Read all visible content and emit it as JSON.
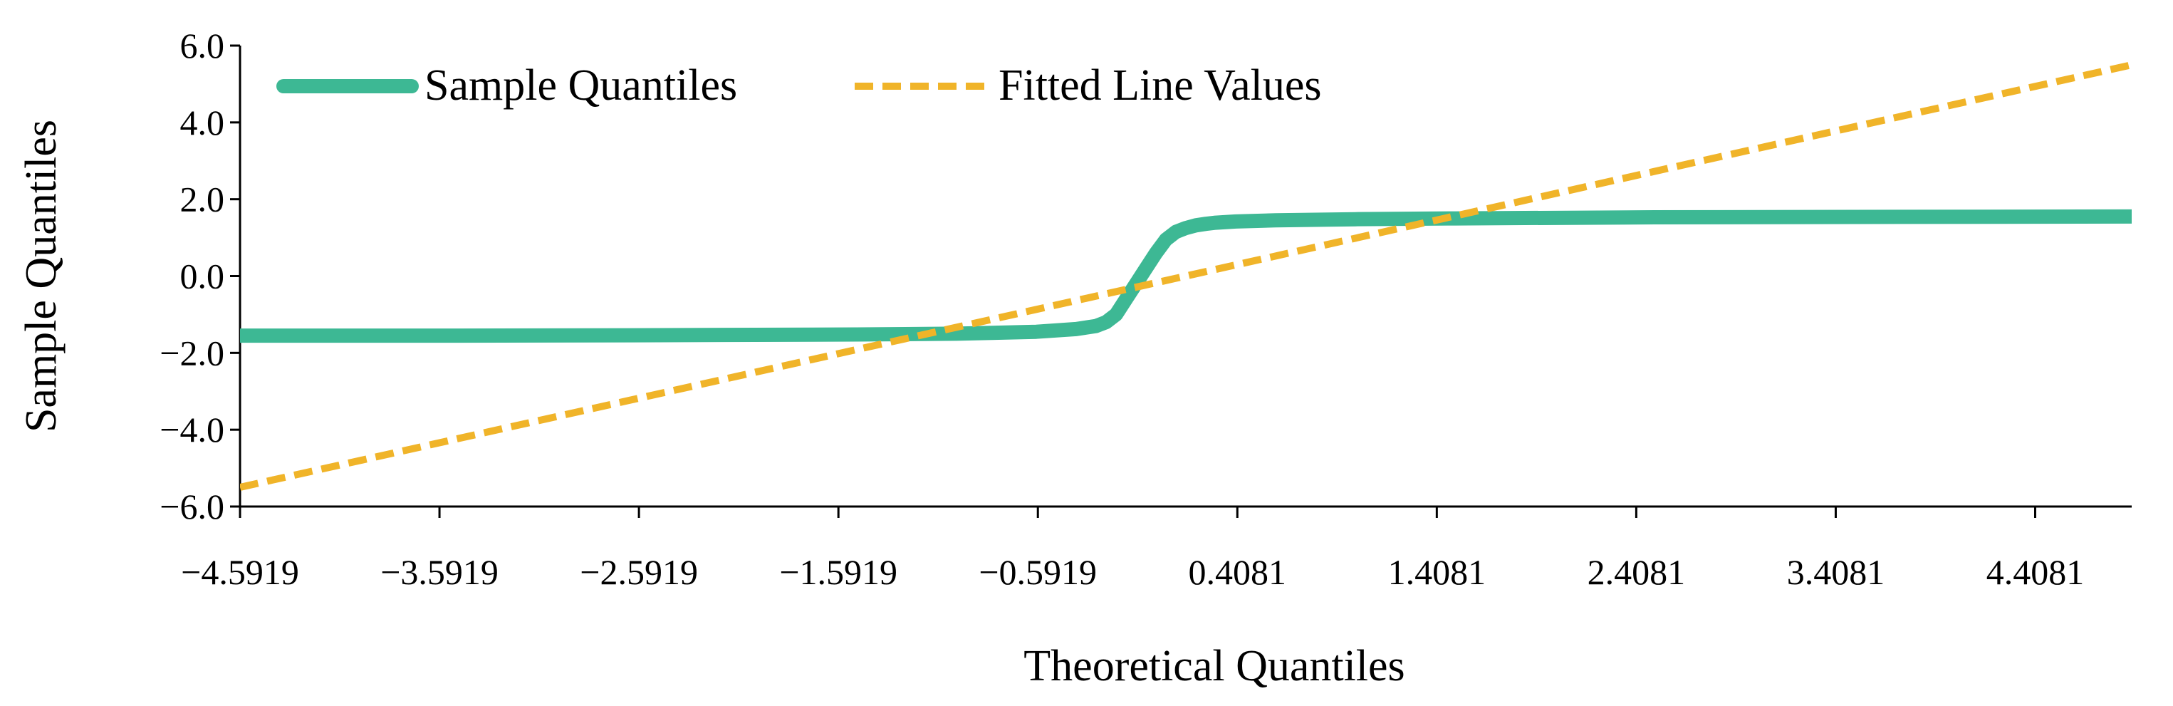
{
  "chart_data": {
    "type": "line",
    "title": "",
    "xlabel": "Theoretical Quantiles",
    "ylabel": "Sample Quantiles",
    "xlim": [
      -4.5919,
      4.8919
    ],
    "ylim": [
      -6.0,
      6.0
    ],
    "xticks": [
      -4.5919,
      -3.5919,
      -2.5919,
      -1.5919,
      -0.5919,
      0.4081,
      1.4081,
      2.4081,
      3.4081,
      4.4081
    ],
    "xtick_labels": [
      "−4.5919",
      "−3.5919",
      "−2.5919",
      "−1.5919",
      "−0.5919",
      "0.4081",
      "1.4081",
      "2.4081",
      "3.4081",
      "4.4081"
    ],
    "yticks": [
      6.0,
      4.0,
      2.0,
      0.0,
      -2.0,
      -4.0,
      -6.0
    ],
    "ytick_labels": [
      "6.0",
      "4.0",
      "2.0",
      "0.0",
      "−2.0",
      "−4.0",
      "−6.0"
    ],
    "grid": false,
    "legend_position": "top-left",
    "series": [
      {
        "name": "Sample Quantiles",
        "style": "solid",
        "color": "#3DB894",
        "x": [
          -4.5919,
          -3.5,
          -2.5,
          -1.5,
          -1.0,
          -0.6,
          -0.4,
          -0.3,
          -0.25,
          -0.2,
          -0.15,
          -0.1,
          -0.05,
          0.0,
          0.05,
          0.1,
          0.15,
          0.2,
          0.25,
          0.3,
          0.4,
          0.6,
          1.0,
          1.5,
          2.5,
          3.5,
          4.8919
        ],
        "y": [
          -1.55,
          -1.55,
          -1.54,
          -1.52,
          -1.5,
          -1.45,
          -1.38,
          -1.3,
          -1.2,
          -1.0,
          -0.6,
          -0.2,
          0.2,
          0.6,
          0.95,
          1.15,
          1.25,
          1.32,
          1.36,
          1.39,
          1.42,
          1.45,
          1.48,
          1.5,
          1.53,
          1.54,
          1.55
        ]
      },
      {
        "name": "Fitted Line Values",
        "style": "dashed",
        "color": "#F0B429",
        "x": [
          -4.5919,
          4.8919
        ],
        "y": [
          -5.5,
          5.5
        ]
      }
    ]
  }
}
